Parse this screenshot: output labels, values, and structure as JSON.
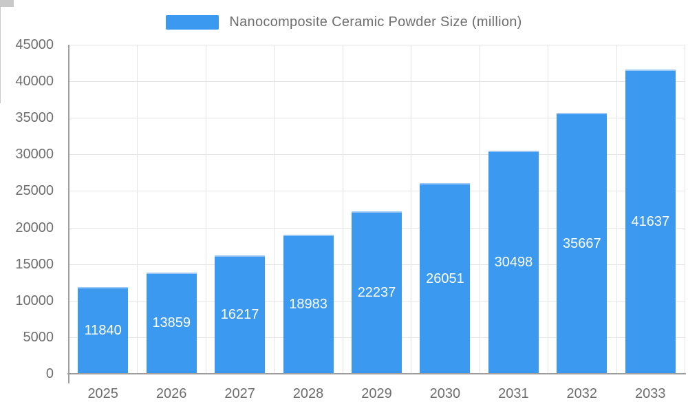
{
  "chart_data": {
    "type": "bar",
    "title": "Nanocomposite Ceramic Powder Size (million)",
    "legend_position": "top",
    "categories": [
      "2025",
      "2026",
      "2027",
      "2028",
      "2029",
      "2030",
      "2031",
      "2032",
      "2033"
    ],
    "series": [
      {
        "name": "Nanocomposite Ceramic Powder Size (million)",
        "values": [
          11840,
          13859,
          16217,
          18983,
          22237,
          26051,
          30498,
          35667,
          41637
        ]
      }
    ],
    "value_labels": [
      "11840",
      "13859",
      "16217",
      "18983",
      "22237",
      "26051",
      "30498",
      "35667",
      "41637"
    ],
    "value_label_position": "inside-center",
    "xlabel": "",
    "ylabel": "",
    "ylim": [
      0,
      45000
    ],
    "ytick_step": 5000,
    "y_tick_labels": [
      "0",
      "5000",
      "10000",
      "15000",
      "20000",
      "25000",
      "30000",
      "35000",
      "40000",
      "45000"
    ],
    "grid": true,
    "grid_vertical": true,
    "colors": {
      "bar": "#3b99f0",
      "bar_top_edge": "#9dc8f5",
      "grid": "#e4e4e4",
      "axis": "#9e9e9e",
      "tick": "#c9c9c9",
      "label_text": "#6e6e6e",
      "value_text": "#ffffff",
      "background": "#ffffff"
    }
  }
}
